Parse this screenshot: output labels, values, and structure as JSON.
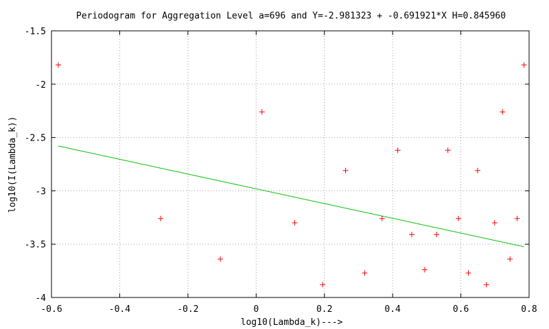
{
  "chart_data": {
    "type": "scatter",
    "title": "Periodogram for Aggregation Level a=696 and Y=-2.981323 + -0.691921*X H=0.845960",
    "xlabel": "log10(Lambda_k)--->",
    "ylabel": "log10(I(Lambda_k))",
    "xlim": [
      -0.6,
      0.8
    ],
    "ylim": [
      -4,
      -1.5
    ],
    "x_ticks": [
      -0.6,
      -0.4,
      -0.2,
      0,
      0.2,
      0.4,
      0.6,
      0.8
    ],
    "x_tick_labels": [
      "-0.6",
      "-0.4",
      "-0.2",
      "0",
      "0.2",
      "0.4",
      "0.6",
      "0.8"
    ],
    "y_ticks": [
      -4,
      -3.5,
      -3,
      -2.5,
      -2,
      -1.5
    ],
    "y_tick_labels": [
      "-4",
      "-3.5",
      "-3",
      "-2.5",
      "-2",
      "-1.5"
    ],
    "grid": true,
    "marker_color": "#ff0000",
    "fit_color": "#00c000",
    "series": [
      {
        "marker": "+",
        "x": [
          -0.58,
          -0.28,
          -0.105,
          0.017,
          0.113,
          0.195,
          0.262,
          0.318,
          0.369,
          0.415,
          0.456,
          0.494,
          0.529,
          0.562,
          0.593,
          0.622,
          0.649,
          0.675,
          0.699,
          0.722,
          0.744,
          0.765,
          0.785
        ],
        "y": [
          -1.82,
          -3.26,
          -3.64,
          -2.26,
          -3.3,
          -3.88,
          -2.81,
          -3.77,
          -3.26,
          -2.62,
          -3.41,
          -3.74,
          -3.41,
          -2.62,
          -3.26,
          -3.77,
          -2.81,
          -3.88,
          -3.3,
          -2.26,
          -3.64,
          -3.26,
          -1.82
        ]
      }
    ],
    "fit_line": {
      "intercept": -2.981323,
      "slope": -0.691921,
      "x_range": [
        -0.58,
        0.785
      ]
    }
  }
}
